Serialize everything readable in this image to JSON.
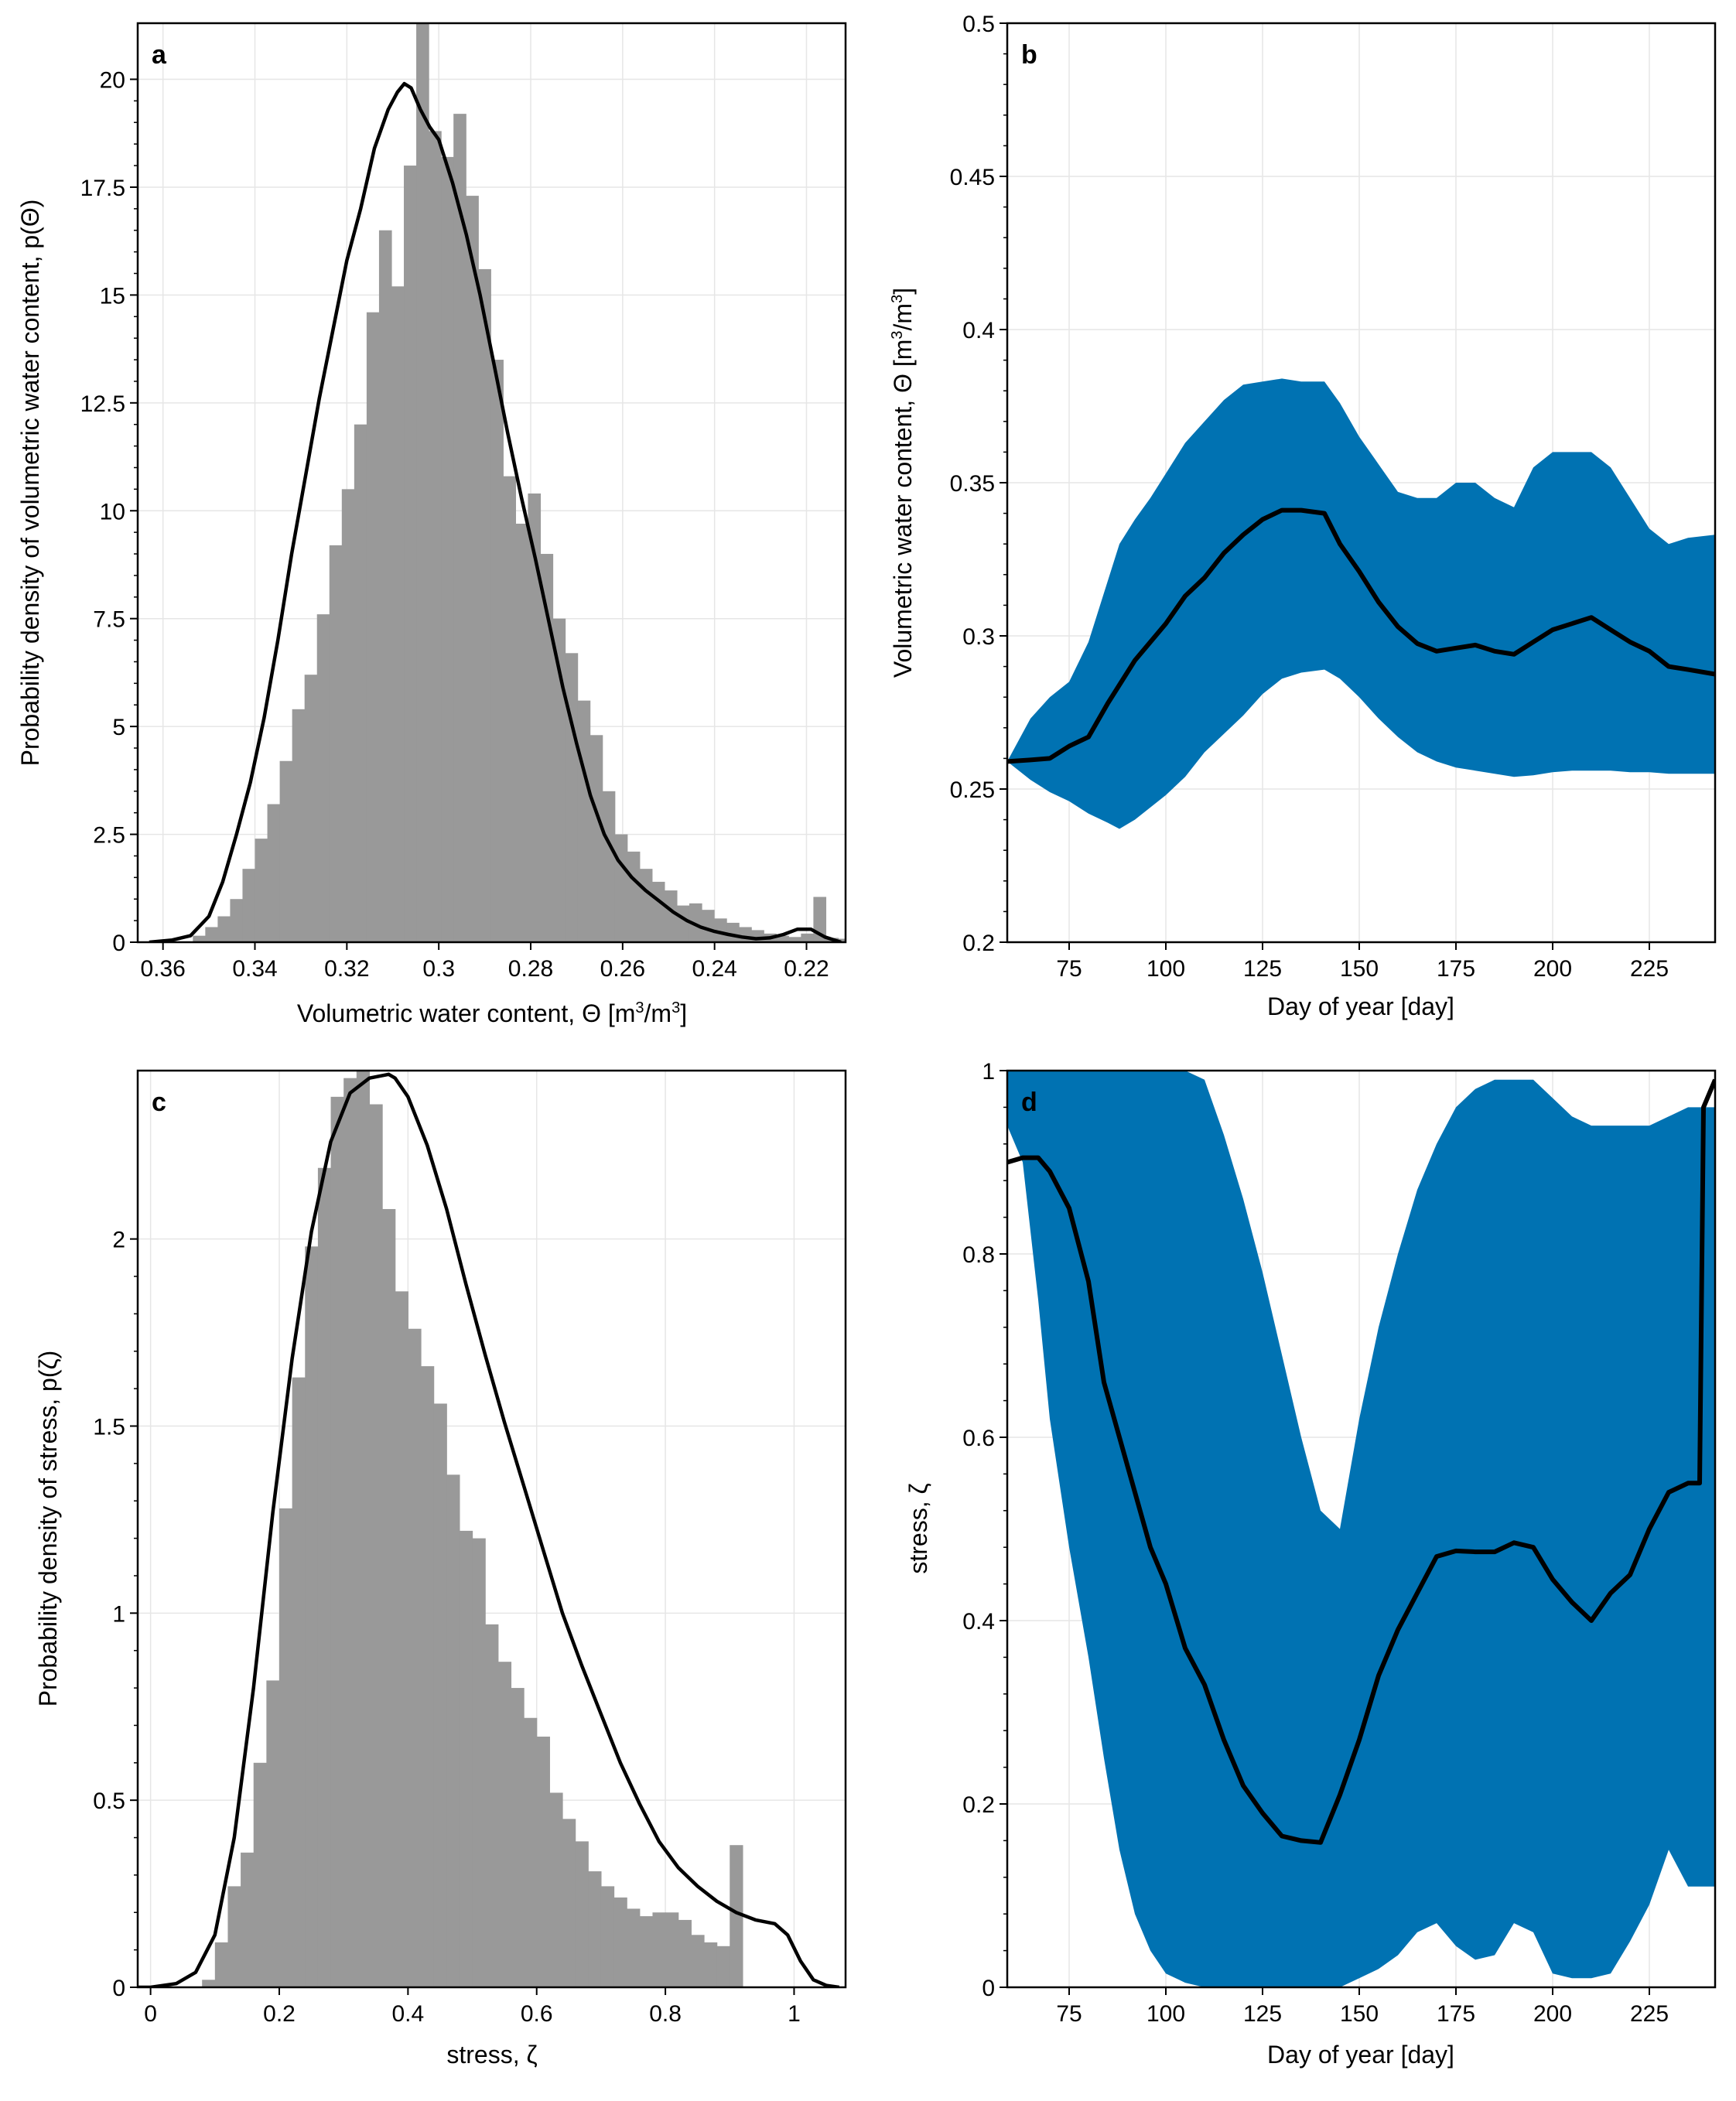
{
  "colors": {
    "histogram": "#999999",
    "band": "#0072b2",
    "curve": "#000000",
    "grid": "#e6e6e6"
  },
  "chart_data": [
    {
      "panel": "a",
      "type": "bar",
      "subtype": "histogram_with_density",
      "xlabel": "Volumetric water content, Θ [m³/m³]",
      "xlabel_main": "Volumetric water content, Θ [m",
      "xlabel_mid": "/m",
      "xlabel_end": "]",
      "xlabel_sup": "3",
      "ylabel": "Probability density of volumetric water content, p(Θ)",
      "x_reversed": true,
      "xlim": [
        0.3655,
        0.2115
      ],
      "ylim": [
        0,
        21.3
      ],
      "xticks": [
        "0.36",
        "0.34",
        "0.32",
        "0.3",
        "0.28",
        "0.26",
        "0.24",
        "0.22"
      ],
      "xtick_values": [
        0.36,
        0.34,
        0.32,
        0.3,
        0.28,
        0.26,
        0.24,
        0.22
      ],
      "yticks": [
        "0",
        "2.5",
        "5",
        "7.5",
        "10",
        "12.5",
        "15",
        "17.5",
        "20"
      ],
      "ytick_values": [
        0,
        2.5,
        5,
        7.5,
        10,
        12.5,
        15,
        17.5,
        20
      ],
      "grid": true,
      "bin_start": 0.3535,
      "bin_width": 0.0027,
      "values": [
        0.15,
        0.35,
        0.6,
        1.0,
        1.7,
        2.4,
        3.2,
        4.2,
        5.4,
        6.2,
        7.6,
        9.2,
        10.5,
        12.0,
        14.6,
        16.5,
        15.2,
        18.0,
        21.4,
        18.8,
        18.2,
        19.2,
        17.3,
        15.6,
        13.5,
        10.8,
        9.7,
        10.4,
        9.0,
        7.5,
        6.7,
        5.6,
        4.8,
        3.5,
        2.5,
        2.1,
        1.7,
        1.4,
        1.2,
        0.85,
        0.9,
        0.75,
        0.55,
        0.45,
        0.35,
        0.28,
        0.2,
        0.15,
        0.12,
        0.2,
        1.05,
        0.1,
        0.08
      ],
      "density_x": [
        0.363,
        0.358,
        0.354,
        0.35,
        0.347,
        0.344,
        0.341,
        0.338,
        0.335,
        0.332,
        0.329,
        0.326,
        0.323,
        0.32,
        0.317,
        0.314,
        0.311,
        0.309,
        0.3075,
        0.306,
        0.304,
        0.302,
        0.3,
        0.297,
        0.294,
        0.291,
        0.288,
        0.285,
        0.282,
        0.279,
        0.276,
        0.273,
        0.27,
        0.267,
        0.264,
        0.261,
        0.258,
        0.255,
        0.252,
        0.249,
        0.246,
        0.243,
        0.24,
        0.237,
        0.234,
        0.231,
        0.228,
        0.225,
        0.222,
        0.219,
        0.216,
        0.2125
      ],
      "density_y": [
        0.0,
        0.05,
        0.15,
        0.6,
        1.4,
        2.5,
        3.7,
        5.2,
        7.0,
        9.0,
        10.8,
        12.6,
        14.2,
        15.8,
        17.0,
        18.4,
        19.3,
        19.7,
        19.9,
        19.8,
        19.3,
        18.9,
        18.6,
        17.6,
        16.4,
        15.0,
        13.4,
        11.8,
        10.3,
        8.9,
        7.4,
        5.9,
        4.6,
        3.4,
        2.5,
        1.9,
        1.5,
        1.2,
        0.95,
        0.7,
        0.5,
        0.35,
        0.25,
        0.18,
        0.12,
        0.08,
        0.1,
        0.18,
        0.3,
        0.3,
        0.12,
        0.0
      ]
    },
    {
      "panel": "b",
      "type": "area",
      "subtype": "mean_with_band",
      "xlabel": "Day of year [day]",
      "ylabel": "Volumetric water content, Θ [m³/m³]",
      "ylabel_main": "Volumetric water content, Θ [m",
      "ylabel_mid": "/m",
      "ylabel_end": "]",
      "ylabel_sup": "3",
      "xlim": [
        59,
        242
      ],
      "ylim": [
        0.2,
        0.5
      ],
      "xticks": [
        "75",
        "100",
        "125",
        "150",
        "175",
        "200",
        "225"
      ],
      "xtick_values": [
        75,
        100,
        125,
        150,
        175,
        200,
        225
      ],
      "yticks": [
        "0.2",
        "0.25",
        "0.3",
        "0.35",
        "0.4",
        "0.45",
        "0.5"
      ],
      "ytick_values": [
        0.2,
        0.25,
        0.3,
        0.35,
        0.4,
        0.45,
        0.5
      ],
      "grid": true,
      "x": [
        59,
        65,
        70,
        75,
        80,
        85,
        88,
        92,
        96,
        100,
        105,
        110,
        115,
        120,
        125,
        130,
        135,
        141,
        145,
        150,
        155,
        160,
        165,
        170,
        175,
        180,
        185,
        190,
        195,
        200,
        205,
        210,
        215,
        220,
        225,
        230,
        235,
        242
      ],
      "mean": [
        0.259,
        0.2595,
        0.26,
        0.264,
        0.267,
        0.278,
        0.284,
        0.292,
        0.298,
        0.304,
        0.313,
        0.319,
        0.327,
        0.333,
        0.338,
        0.341,
        0.341,
        0.34,
        0.33,
        0.321,
        0.311,
        0.303,
        0.2975,
        0.295,
        0.296,
        0.297,
        0.295,
        0.294,
        0.298,
        0.302,
        0.304,
        0.306,
        0.302,
        0.298,
        0.295,
        0.29,
        0.289,
        0.2875
      ],
      "upper": [
        0.259,
        0.273,
        0.28,
        0.285,
        0.298,
        0.318,
        0.33,
        0.338,
        0.345,
        0.353,
        0.363,
        0.37,
        0.377,
        0.382,
        0.383,
        0.384,
        0.383,
        0.383,
        0.376,
        0.365,
        0.356,
        0.347,
        0.345,
        0.345,
        0.35,
        0.35,
        0.345,
        0.342,
        0.355,
        0.36,
        0.36,
        0.36,
        0.355,
        0.345,
        0.335,
        0.33,
        0.332,
        0.333
      ],
      "lower": [
        0.259,
        0.253,
        0.249,
        0.246,
        0.242,
        0.239,
        0.237,
        0.24,
        0.244,
        0.248,
        0.254,
        0.262,
        0.268,
        0.274,
        0.281,
        0.286,
        0.288,
        0.289,
        0.286,
        0.28,
        0.273,
        0.267,
        0.262,
        0.259,
        0.257,
        0.256,
        0.255,
        0.254,
        0.2545,
        0.2555,
        0.256,
        0.256,
        0.256,
        0.2555,
        0.2555,
        0.255,
        0.255,
        0.255
      ]
    },
    {
      "panel": "c",
      "type": "bar",
      "subtype": "histogram_with_density",
      "xlabel": "stress, ζ",
      "ylabel": "Probability density of stress, p(ζ)",
      "xlim": [
        -0.02,
        1.08
      ],
      "ylim": [
        0,
        2.45
      ],
      "xticks": [
        "0",
        "0.2",
        "0.4",
        "0.6",
        "0.8",
        "1"
      ],
      "xtick_values": [
        0,
        0.2,
        0.4,
        0.6,
        0.8,
        1.0
      ],
      "yticks": [
        "0",
        "0.5",
        "1",
        "1.5",
        "2"
      ],
      "ytick_values": [
        0,
        0.5,
        1.0,
        1.5,
        2.0
      ],
      "grid": true,
      "bin_start": 0.08,
      "bin_width": 0.02,
      "values": [
        0.02,
        0.12,
        0.27,
        0.36,
        0.6,
        0.82,
        1.28,
        1.63,
        1.98,
        2.19,
        2.38,
        2.43,
        2.5,
        2.36,
        2.08,
        1.86,
        1.76,
        1.66,
        1.56,
        1.37,
        1.22,
        1.2,
        0.97,
        0.87,
        0.8,
        0.72,
        0.67,
        0.52,
        0.45,
        0.39,
        0.31,
        0.27,
        0.24,
        0.21,
        0.19,
        0.2,
        0.2,
        0.18,
        0.14,
        0.12,
        0.11,
        0.38
      ],
      "density_x": [
        -0.02,
        0.0,
        0.04,
        0.07,
        0.1,
        0.13,
        0.16,
        0.19,
        0.22,
        0.25,
        0.28,
        0.31,
        0.34,
        0.37,
        0.38,
        0.4,
        0.43,
        0.46,
        0.49,
        0.52,
        0.55,
        0.58,
        0.61,
        0.64,
        0.67,
        0.7,
        0.73,
        0.76,
        0.79,
        0.82,
        0.85,
        0.88,
        0.91,
        0.94,
        0.97,
        0.99,
        1.01,
        1.03,
        1.05,
        1.07
      ],
      "density_y": [
        0.0,
        0.0,
        0.01,
        0.04,
        0.14,
        0.4,
        0.8,
        1.27,
        1.68,
        2.02,
        2.26,
        2.39,
        2.43,
        2.44,
        2.43,
        2.38,
        2.25,
        2.08,
        1.88,
        1.69,
        1.51,
        1.34,
        1.17,
        1.0,
        0.86,
        0.73,
        0.6,
        0.49,
        0.39,
        0.32,
        0.27,
        0.23,
        0.2,
        0.18,
        0.17,
        0.14,
        0.07,
        0.02,
        0.005,
        0.0
      ]
    },
    {
      "panel": "d",
      "type": "area",
      "subtype": "mean_with_band",
      "xlabel": "Day of year [day]",
      "ylabel": "stress, ζ",
      "xlim": [
        59,
        242
      ],
      "ylim": [
        0,
        1
      ],
      "xticks": [
        "75",
        "100",
        "125",
        "150",
        "175",
        "200",
        "225"
      ],
      "xtick_values": [
        75,
        100,
        125,
        150,
        175,
        200,
        225
      ],
      "yticks": [
        "0",
        "0.2",
        "0.4",
        "0.6",
        "0.8",
        "1"
      ],
      "ytick_values": [
        0,
        0.2,
        0.4,
        0.6,
        0.8,
        1.0
      ],
      "grid": true,
      "x": [
        59,
        63,
        67,
        70,
        75,
        80,
        84,
        88,
        92,
        96,
        100,
        105,
        110,
        115,
        120,
        125,
        130,
        135,
        140,
        145,
        150,
        155,
        160,
        165,
        170,
        175,
        180,
        185,
        190,
        195,
        200,
        205,
        210,
        215,
        220,
        225,
        230,
        235,
        238,
        239,
        242
      ],
      "mean": [
        0.9,
        0.905,
        0.905,
        0.89,
        0.85,
        0.77,
        0.66,
        0.6,
        0.54,
        0.48,
        0.44,
        0.37,
        0.33,
        0.27,
        0.22,
        0.19,
        0.165,
        0.16,
        0.158,
        0.21,
        0.27,
        0.34,
        0.39,
        0.43,
        0.47,
        0.476,
        0.475,
        0.475,
        0.485,
        0.48,
        0.445,
        0.42,
        0.4,
        0.43,
        0.45,
        0.5,
        0.54,
        0.55,
        0.55,
        0.96,
        0.99
      ],
      "upper": [
        1.0,
        1.0,
        1.0,
        1.0,
        1.0,
        1.0,
        1.0,
        1.0,
        1.0,
        1.0,
        1.0,
        1.0,
        0.99,
        0.93,
        0.86,
        0.78,
        0.69,
        0.6,
        0.52,
        0.5,
        0.62,
        0.72,
        0.8,
        0.87,
        0.92,
        0.96,
        0.98,
        0.99,
        0.99,
        0.99,
        0.97,
        0.95,
        0.94,
        0.94,
        0.94,
        0.94,
        0.95,
        0.96,
        0.96,
        0.96,
        0.96
      ],
      "lower": [
        0.94,
        0.9,
        0.75,
        0.62,
        0.48,
        0.36,
        0.25,
        0.15,
        0.08,
        0.04,
        0.015,
        0.005,
        0.0,
        0.0,
        0.0,
        0.0,
        0.0,
        0.0,
        0.0,
        0.0,
        0.01,
        0.02,
        0.035,
        0.06,
        0.07,
        0.045,
        0.03,
        0.035,
        0.07,
        0.06,
        0.015,
        0.01,
        0.01,
        0.015,
        0.05,
        0.09,
        0.15,
        0.11,
        0.11,
        0.11,
        0.11
      ]
    }
  ]
}
